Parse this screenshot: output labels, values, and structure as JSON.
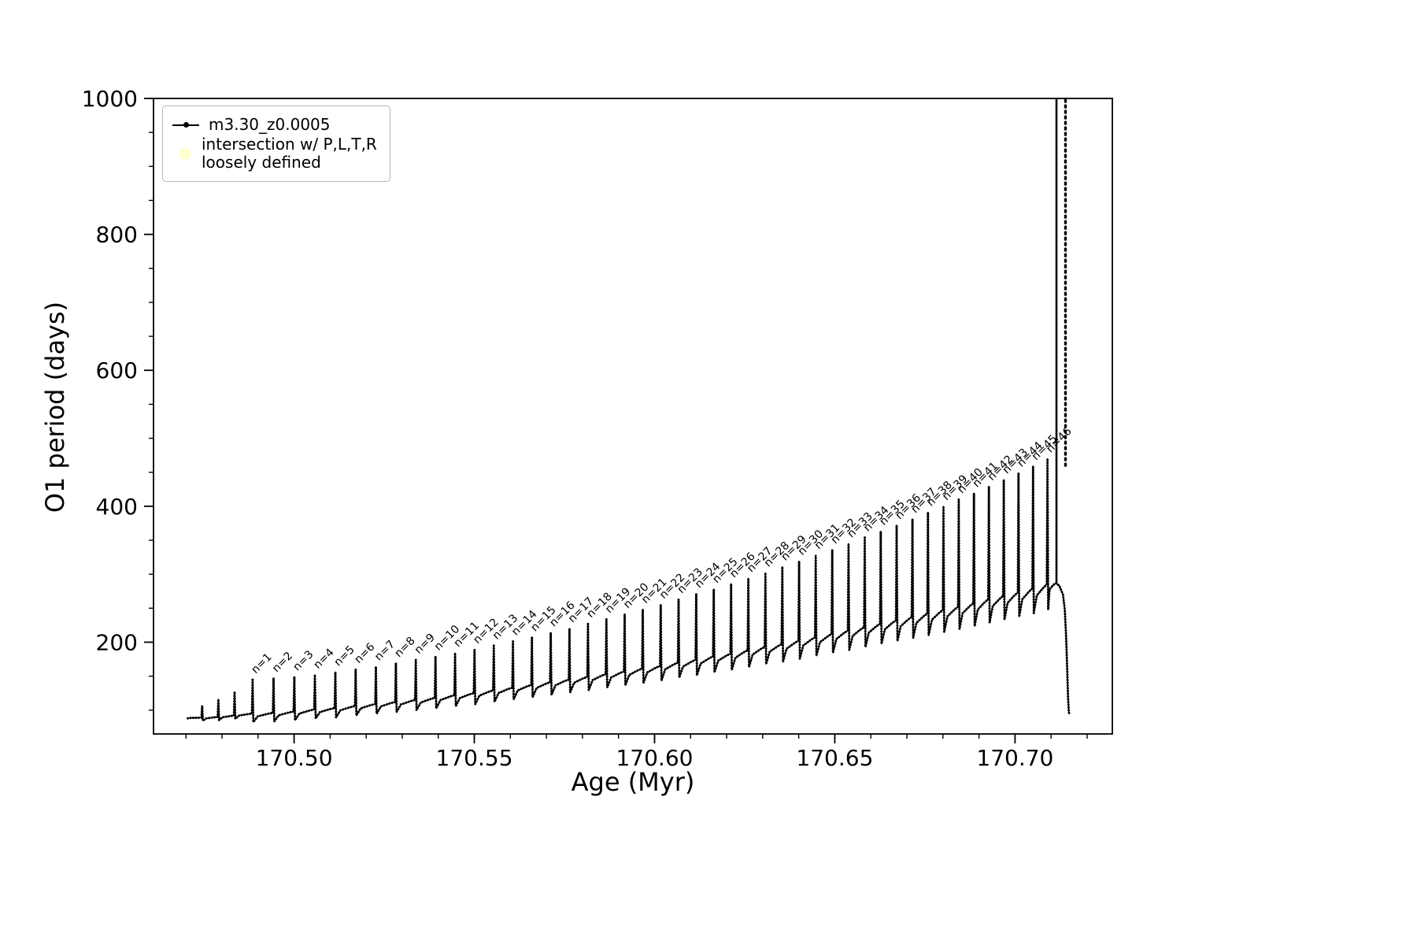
{
  "figure": {
    "background": "#ffffff"
  },
  "axes": {
    "xlabel": "Age (Myr)",
    "ylabel": "O1 period (days)",
    "xlim": [
      170.461,
      170.727
    ],
    "ylim": [
      65,
      1000
    ],
    "x_ticks": [
      170.5,
      170.55,
      170.6,
      170.65,
      170.7
    ],
    "x_tick_labels": [
      "170.50",
      "170.55",
      "170.60",
      "170.65",
      "170.70"
    ],
    "y_ticks": [
      200,
      400,
      600,
      800,
      1000
    ],
    "y_tick_labels": [
      "200",
      "400",
      "600",
      "800",
      "1000"
    ],
    "x_minor_step": 0.01,
    "y_minor_step": 50,
    "spine_color": "#000000"
  },
  "legend": {
    "series1_label": "m3.30_z0.0005",
    "series1_color": "#000000",
    "series2_label": "intersection w/ P,L,T,R\nloosely defined",
    "series2_color": "#ffffd0"
  },
  "chart_data": {
    "type": "line",
    "title": "",
    "xlabel": "Age (Myr)",
    "ylabel": "O1 period (days)",
    "xlim": [
      170.461,
      170.727
    ],
    "ylim": [
      65,
      1000
    ],
    "series_name": "m3.30_z0.0005",
    "line_color": "#000000",
    "start": {
      "age": 170.4705,
      "period": 88
    },
    "pre_pulses": [
      {
        "age": 170.4745,
        "base": 89,
        "peak": 106
      },
      {
        "age": 170.479,
        "base": 90,
        "peak": 116
      },
      {
        "age": 170.4835,
        "base": 92,
        "peak": 127
      }
    ],
    "pulses": [
      {
        "n": 1,
        "age": 170.4885,
        "base": 95,
        "peak": 145
      },
      {
        "n": 2,
        "age": 170.4943,
        "base": 96,
        "peak": 147
      },
      {
        "n": 3,
        "age": 170.50006,
        "base": 98,
        "peak": 149
      },
      {
        "n": 4,
        "age": 170.50578,
        "base": 101,
        "peak": 152
      },
      {
        "n": 5,
        "age": 170.51145,
        "base": 103,
        "peak": 156
      },
      {
        "n": 6,
        "age": 170.51709,
        "base": 106,
        "peak": 160
      },
      {
        "n": 7,
        "age": 170.52269,
        "base": 109,
        "peak": 164
      },
      {
        "n": 8,
        "age": 170.52824,
        "base": 112,
        "peak": 169
      },
      {
        "n": 9,
        "age": 170.53376,
        "base": 115,
        "peak": 174
      },
      {
        "n": 10,
        "age": 170.53923,
        "base": 118,
        "peak": 179
      },
      {
        "n": 11,
        "age": 170.54466,
        "base": 122,
        "peak": 184
      },
      {
        "n": 12,
        "age": 170.55005,
        "base": 125,
        "peak": 189
      },
      {
        "n": 13,
        "age": 170.5554,
        "base": 129,
        "peak": 195
      },
      {
        "n": 14,
        "age": 170.56071,
        "base": 133,
        "peak": 201
      },
      {
        "n": 15,
        "age": 170.56598,
        "base": 137,
        "peak": 207
      },
      {
        "n": 16,
        "age": 170.57121,
        "base": 141,
        "peak": 214
      },
      {
        "n": 17,
        "age": 170.5764,
        "base": 145,
        "peak": 220
      },
      {
        "n": 18,
        "age": 170.58154,
        "base": 149,
        "peak": 227
      },
      {
        "n": 19,
        "age": 170.58665,
        "base": 153,
        "peak": 234
      },
      {
        "n": 20,
        "age": 170.59171,
        "base": 157,
        "peak": 241
      },
      {
        "n": 21,
        "age": 170.59673,
        "base": 161,
        "peak": 248
      },
      {
        "n": 22,
        "age": 170.60172,
        "base": 165,
        "peak": 255
      },
      {
        "n": 23,
        "age": 170.60666,
        "base": 170,
        "peak": 263
      },
      {
        "n": 24,
        "age": 170.61156,
        "base": 174,
        "peak": 271
      },
      {
        "n": 25,
        "age": 170.61642,
        "base": 179,
        "peak": 278
      },
      {
        "n": 26,
        "age": 170.62123,
        "base": 183,
        "peak": 286
      },
      {
        "n": 27,
        "age": 170.62601,
        "base": 188,
        "peak": 294
      },
      {
        "n": 28,
        "age": 170.63075,
        "base": 193,
        "peak": 302
      },
      {
        "n": 29,
        "age": 170.63544,
        "base": 197,
        "peak": 311
      },
      {
        "n": 30,
        "age": 170.6401,
        "base": 202,
        "peak": 319
      },
      {
        "n": 31,
        "age": 170.64471,
        "base": 207,
        "peak": 328
      },
      {
        "n": 32,
        "age": 170.64929,
        "base": 212,
        "peak": 336
      },
      {
        "n": 33,
        "age": 170.65382,
        "base": 217,
        "peak": 345
      },
      {
        "n": 34,
        "age": 170.65831,
        "base": 222,
        "peak": 354
      },
      {
        "n": 35,
        "age": 170.66276,
        "base": 227,
        "peak": 363
      },
      {
        "n": 36,
        "age": 170.66717,
        "base": 232,
        "peak": 372
      },
      {
        "n": 37,
        "age": 170.67154,
        "base": 237,
        "peak": 381
      },
      {
        "n": 38,
        "age": 170.67586,
        "base": 242,
        "peak": 391
      },
      {
        "n": 39,
        "age": 170.68015,
        "base": 247,
        "peak": 400
      },
      {
        "n": 40,
        "age": 170.68439,
        "base": 252,
        "peak": 410
      },
      {
        "n": 41,
        "age": 170.6886,
        "base": 257,
        "peak": 419
      },
      {
        "n": 42,
        "age": 170.69276,
        "base": 263,
        "peak": 429
      },
      {
        "n": 43,
        "age": 170.69689,
        "base": 268,
        "peak": 439
      },
      {
        "n": 44,
        "age": 170.70097,
        "base": 273,
        "peak": 449
      },
      {
        "n": 45,
        "age": 170.70501,
        "base": 279,
        "peak": 459
      },
      {
        "n": 46,
        "age": 170.70901,
        "base": 285,
        "peak": 470
      }
    ],
    "terminal": {
      "hump": [
        [
          170.7096,
          278
        ],
        [
          170.7106,
          284
        ],
        [
          170.7113,
          287
        ],
        [
          170.7123,
          283
        ],
        [
          170.7133,
          270
        ],
        [
          170.7138,
          248
        ],
        [
          170.7142,
          205
        ],
        [
          170.7145,
          155
        ],
        [
          170.7147,
          120
        ],
        [
          170.7149,
          100
        ],
        [
          170.715,
          95
        ]
      ],
      "vertical_lines": [
        {
          "age": 170.7115,
          "y0": 285,
          "y1": 1000,
          "style": "solid"
        },
        {
          "age": 170.714,
          "y0": 460,
          "y1": 1000,
          "style": "dotted"
        }
      ]
    },
    "pulse_label_prefix": "n="
  }
}
